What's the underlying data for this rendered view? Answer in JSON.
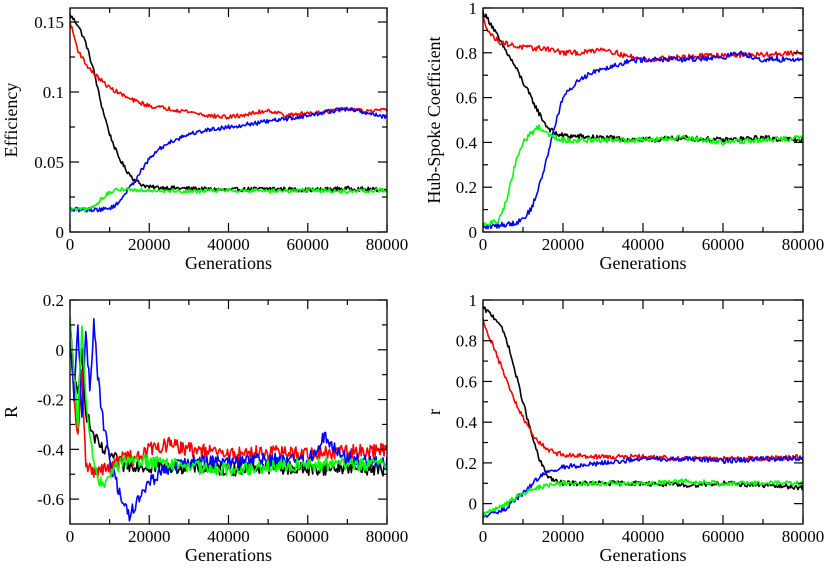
{
  "figure": {
    "layout": "2x2 grid"
  },
  "chart_data": [
    {
      "type": "line",
      "panel": "top-left",
      "xlabel": "Generations",
      "ylabel": "Efficiency",
      "xlim": [
        0,
        80000
      ],
      "ylim": [
        0,
        0.16
      ],
      "xticks": [
        0,
        20000,
        40000,
        60000,
        80000
      ],
      "xtick_labels": [
        "0",
        "20000",
        "40000",
        "60000",
        "80000"
      ],
      "yticks": [
        0,
        0.05,
        0.1,
        0.15
      ],
      "ytick_labels": [
        "0",
        "0.05",
        "0.1",
        "0.15"
      ],
      "noise": 0.0015,
      "series": [
        {
          "name": "black",
          "color": "#000000",
          "x": [
            0,
            2000,
            4000,
            6000,
            8000,
            10000,
            12000,
            14000,
            16000,
            18000,
            20000,
            30000,
            40000,
            50000,
            60000,
            70000,
            80000
          ],
          "values": [
            0.155,
            0.148,
            0.135,
            0.115,
            0.09,
            0.07,
            0.055,
            0.045,
            0.038,
            0.034,
            0.032,
            0.031,
            0.03,
            0.031,
            0.03,
            0.031,
            0.03
          ]
        },
        {
          "name": "red",
          "color": "#ff0000",
          "x": [
            0,
            2000,
            4000,
            6000,
            8000,
            10000,
            12000,
            15000,
            20000,
            25000,
            30000,
            35000,
            40000,
            45000,
            50000,
            55000,
            60000,
            65000,
            70000,
            75000,
            80000
          ],
          "values": [
            0.15,
            0.13,
            0.12,
            0.113,
            0.108,
            0.103,
            0.1,
            0.095,
            0.09,
            0.088,
            0.086,
            0.083,
            0.082,
            0.084,
            0.087,
            0.083,
            0.085,
            0.086,
            0.088,
            0.086,
            0.087
          ]
        },
        {
          "name": "blue",
          "color": "#0000ff",
          "x": [
            0,
            4000,
            8000,
            10000,
            12000,
            14000,
            16000,
            18000,
            20000,
            22000,
            25000,
            30000,
            35000,
            40000,
            45000,
            50000,
            55000,
            60000,
            65000,
            70000,
            75000,
            80000
          ],
          "values": [
            0.016,
            0.016,
            0.016,
            0.017,
            0.02,
            0.028,
            0.035,
            0.044,
            0.052,
            0.058,
            0.064,
            0.07,
            0.073,
            0.075,
            0.077,
            0.079,
            0.081,
            0.083,
            0.086,
            0.088,
            0.085,
            0.082
          ]
        },
        {
          "name": "green",
          "color": "#00ff00",
          "x": [
            0,
            4000,
            6000,
            8000,
            10000,
            12000,
            14000,
            16000,
            20000,
            30000,
            40000,
            50000,
            60000,
            70000,
            80000
          ],
          "values": [
            0.016,
            0.016,
            0.018,
            0.024,
            0.028,
            0.03,
            0.031,
            0.03,
            0.03,
            0.029,
            0.03,
            0.029,
            0.03,
            0.029,
            0.03
          ]
        }
      ]
    },
    {
      "type": "line",
      "panel": "top-right",
      "xlabel": "Generations",
      "ylabel": "Hub-Spoke Coefficient",
      "xlim": [
        0,
        80000
      ],
      "ylim": [
        0,
        1
      ],
      "xticks": [
        0,
        20000,
        40000,
        60000,
        80000
      ],
      "xtick_labels": [
        "0",
        "20000",
        "40000",
        "60000",
        "80000"
      ],
      "yticks": [
        0,
        0.2,
        0.4,
        0.6,
        0.8,
        1
      ],
      "ytick_labels": [
        "0",
        "0.2",
        "0.4",
        "0.6",
        "0.8",
        "1"
      ],
      "noise": 0.012,
      "series": [
        {
          "name": "black",
          "color": "#000000",
          "x": [
            0,
            2000,
            4000,
            6000,
            8000,
            10000,
            12000,
            14000,
            16000,
            18000,
            20000,
            30000,
            40000,
            50000,
            60000,
            70000,
            80000
          ],
          "values": [
            0.98,
            0.93,
            0.86,
            0.8,
            0.74,
            0.67,
            0.6,
            0.53,
            0.47,
            0.44,
            0.43,
            0.42,
            0.41,
            0.42,
            0.41,
            0.42,
            0.41
          ]
        },
        {
          "name": "red",
          "color": "#ff0000",
          "x": [
            0,
            2000,
            4000,
            8000,
            12000,
            16000,
            20000,
            25000,
            30000,
            35000,
            40000,
            50000,
            60000,
            70000,
            80000
          ],
          "values": [
            0.95,
            0.88,
            0.85,
            0.83,
            0.82,
            0.82,
            0.8,
            0.8,
            0.82,
            0.79,
            0.77,
            0.78,
            0.79,
            0.79,
            0.8
          ]
        },
        {
          "name": "blue",
          "color": "#0000ff",
          "x": [
            0,
            4000,
            8000,
            10000,
            12000,
            14000,
            16000,
            18000,
            20000,
            24000,
            28000,
            32000,
            36000,
            40000,
            50000,
            60000,
            64000,
            70000,
            80000
          ],
          "values": [
            0.02,
            0.03,
            0.04,
            0.06,
            0.1,
            0.2,
            0.33,
            0.48,
            0.6,
            0.68,
            0.72,
            0.74,
            0.76,
            0.77,
            0.77,
            0.78,
            0.8,
            0.77,
            0.77
          ]
        },
        {
          "name": "green",
          "color": "#00ff00",
          "x": [
            0,
            2000,
            4000,
            6000,
            8000,
            10000,
            12000,
            14000,
            16000,
            20000,
            30000,
            40000,
            50000,
            60000,
            70000,
            80000
          ],
          "values": [
            0.03,
            0.04,
            0.05,
            0.15,
            0.3,
            0.4,
            0.44,
            0.47,
            0.44,
            0.41,
            0.41,
            0.41,
            0.42,
            0.4,
            0.41,
            0.42
          ]
        }
      ]
    },
    {
      "type": "line",
      "panel": "bottom-left",
      "xlabel": "Generations",
      "ylabel": "R",
      "xlim": [
        0,
        80000
      ],
      "ylim": [
        -0.7,
        0.2
      ],
      "xticks": [
        0,
        20000,
        40000,
        60000,
        80000
      ],
      "xtick_labels": [
        "0",
        "20000",
        "40000",
        "60000",
        "80000"
      ],
      "yticks": [
        -0.6,
        -0.4,
        -0.2,
        0,
        0.2
      ],
      "ytick_labels": [
        "-0.6",
        "-0.4",
        "-0.2",
        "0",
        "0.2"
      ],
      "noise": 0.028,
      "series": [
        {
          "name": "black",
          "color": "#000000",
          "x": [
            0,
            1000,
            2000,
            3000,
            4000,
            5000,
            6000,
            8000,
            10000,
            12000,
            14000,
            16000,
            20000,
            30000,
            40000,
            50000,
            60000,
            70000,
            80000
          ],
          "values": [
            0.1,
            -0.1,
            -0.2,
            0.0,
            -0.25,
            -0.3,
            -0.35,
            -0.4,
            -0.42,
            -0.45,
            -0.47,
            -0.46,
            -0.47,
            -0.47,
            -0.48,
            -0.47,
            -0.48,
            -0.47,
            -0.48
          ]
        },
        {
          "name": "red",
          "color": "#ff0000",
          "x": [
            0,
            1000,
            2000,
            3000,
            4000,
            6000,
            8000,
            10000,
            12000,
            14000,
            16000,
            18000,
            20000,
            25000,
            30000,
            40000,
            50000,
            60000,
            70000,
            80000
          ],
          "values": [
            0.05,
            -0.2,
            -0.35,
            -0.1,
            -0.45,
            -0.5,
            -0.48,
            -0.48,
            -0.45,
            -0.42,
            -0.44,
            -0.42,
            -0.4,
            -0.38,
            -0.4,
            -0.42,
            -0.41,
            -0.42,
            -0.41,
            -0.4
          ]
        },
        {
          "name": "blue",
          "color": "#0000ff",
          "x": [
            0,
            1000,
            2000,
            3000,
            4000,
            5000,
            6000,
            7000,
            8000,
            9000,
            10000,
            12000,
            14000,
            15000,
            17000,
            20000,
            24000,
            30000,
            40000,
            50000,
            60000,
            64000,
            70000,
            80000
          ],
          "values": [
            0.1,
            -0.2,
            0.1,
            -0.25,
            0.05,
            -0.15,
            0.1,
            -0.1,
            -0.25,
            -0.35,
            -0.45,
            -0.55,
            -0.62,
            -0.67,
            -0.6,
            -0.53,
            -0.48,
            -0.45,
            -0.45,
            -0.44,
            -0.45,
            -0.35,
            -0.44,
            -0.45
          ]
        },
        {
          "name": "green",
          "color": "#00ff00",
          "x": [
            0,
            1000,
            2000,
            3000,
            4000,
            5000,
            6000,
            8000,
            10000,
            12000,
            14000,
            16000,
            20000,
            30000,
            40000,
            50000,
            60000,
            70000,
            80000
          ],
          "values": [
            0.12,
            -0.1,
            -0.3,
            0.1,
            -0.2,
            -0.35,
            -0.45,
            -0.55,
            -0.5,
            -0.47,
            -0.45,
            -0.44,
            -0.45,
            -0.47,
            -0.48,
            -0.47,
            -0.46,
            -0.46,
            -0.46
          ]
        }
      ]
    },
    {
      "type": "line",
      "panel": "bottom-right",
      "xlabel": "Generations",
      "ylabel": "r",
      "xlim": [
        0,
        80000
      ],
      "ylim": [
        -0.1,
        1
      ],
      "xticks": [
        0,
        20000,
        40000,
        60000,
        80000
      ],
      "xtick_labels": [
        "0",
        "20000",
        "40000",
        "60000",
        "80000"
      ],
      "yticks": [
        0,
        0.2,
        0.4,
        0.6,
        0.8,
        1
      ],
      "ytick_labels": [
        "0",
        "0.2",
        "0.4",
        "0.6",
        "0.8",
        "1"
      ],
      "noise": 0.012,
      "series": [
        {
          "name": "black",
          "color": "#000000",
          "x": [
            0,
            2000,
            4000,
            6000,
            8000,
            10000,
            12000,
            14000,
            16000,
            18000,
            20000,
            30000,
            40000,
            50000,
            60000,
            70000,
            80000
          ],
          "values": [
            0.96,
            0.93,
            0.89,
            0.8,
            0.65,
            0.5,
            0.35,
            0.22,
            0.14,
            0.11,
            0.1,
            0.1,
            0.1,
            0.09,
            0.1,
            0.09,
            0.08
          ]
        },
        {
          "name": "red",
          "color": "#ff0000",
          "x": [
            0,
            2000,
            4000,
            6000,
            8000,
            10000,
            12000,
            14000,
            16000,
            18000,
            20000,
            30000,
            40000,
            50000,
            60000,
            70000,
            80000
          ],
          "values": [
            0.9,
            0.8,
            0.7,
            0.6,
            0.5,
            0.42,
            0.35,
            0.3,
            0.27,
            0.25,
            0.24,
            0.23,
            0.23,
            0.22,
            0.22,
            0.22,
            0.23
          ]
        },
        {
          "name": "blue",
          "color": "#0000ff",
          "x": [
            0,
            2000,
            4000,
            6000,
            8000,
            10000,
            12000,
            14000,
            16000,
            20000,
            30000,
            40000,
            50000,
            60000,
            70000,
            80000
          ],
          "values": [
            -0.06,
            -0.05,
            -0.04,
            -0.02,
            0.02,
            0.05,
            0.09,
            0.13,
            0.15,
            0.18,
            0.2,
            0.22,
            0.22,
            0.21,
            0.22,
            0.22
          ]
        },
        {
          "name": "green",
          "color": "#00ff00",
          "x": [
            0,
            2000,
            4000,
            6000,
            8000,
            10000,
            12000,
            14000,
            16000,
            20000,
            30000,
            40000,
            50000,
            60000,
            70000,
            80000
          ],
          "values": [
            -0.05,
            -0.04,
            -0.02,
            0.0,
            0.03,
            0.05,
            0.07,
            0.08,
            0.09,
            0.1,
            0.1,
            0.1,
            0.11,
            0.1,
            0.1,
            0.1
          ]
        }
      ]
    }
  ]
}
